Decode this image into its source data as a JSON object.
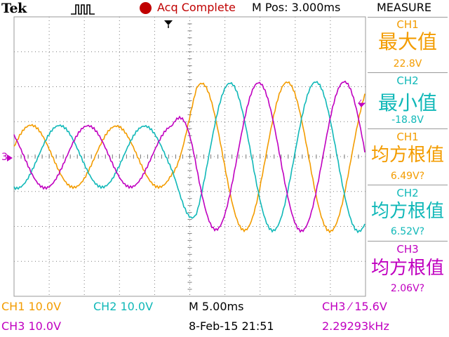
{
  "header": {
    "brand": "Tek",
    "status": "Acq Complete",
    "mpos": "M Pos: 3.000ms",
    "measure_title": "MEASURE"
  },
  "measurements": [
    {
      "channel": "CH1",
      "label": "最大值",
      "value": "22.8V",
      "color": "#f39c00"
    },
    {
      "channel": "CH2",
      "label": "最小值",
      "value": "-18.8V",
      "color": "#10b8b8"
    },
    {
      "channel": "CH1",
      "label": "均方根值",
      "value": "6.49V?",
      "color": "#f39c00"
    },
    {
      "channel": "CH2",
      "label": "均方根值",
      "value": "6.52V?",
      "color": "#10b8b8"
    },
    {
      "channel": "CH3",
      "label": "均方根值",
      "value": "2.06V?",
      "color": "#c000c0"
    }
  ],
  "footer": {
    "ch1_scale": "CH1  10.0V",
    "ch2_scale": "CH2  10.0V",
    "ch3_scale": "CH3  10.0V",
    "timebase": "M 5.00ms",
    "date": "8-Feb-15 21:51",
    "trigger": "CH3 ⁄ 15.6V",
    "frequency": "2.29293kHz"
  },
  "markers": {
    "ch3_marker": "3",
    "trigger_arrow": "◄",
    "horizontal_pos": "▼"
  },
  "colors": {
    "ch1": "#f39c00",
    "ch2": "#10b8b8",
    "ch3": "#c000c0",
    "status": "#c00000"
  }
}
